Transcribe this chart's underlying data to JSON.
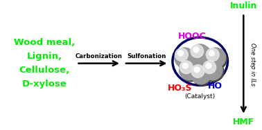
{
  "biomass_text": [
    "Wood meal,",
    "Lignin,",
    "Cellulose,",
    "D-xylose"
  ],
  "biomass_color": "#00ee00",
  "carbonization_label": "Carbonization",
  "sulfonation_label": "Sulfonation",
  "hooc_label": "HOOC",
  "hooc_color": "#dd00dd",
  "ho3s_label": "HO₃S",
  "ho3s_color": "#ff0000",
  "ho_label": "HO",
  "ho_color": "#0000cc",
  "catalyst_label": "(Catalyst)",
  "catalyst_color": "#000000",
  "inulin_label": "Inulin",
  "inulin_color": "#00ee00",
  "hmf_label": "HMF",
  "hmf_color": "#00ee00",
  "vertical_label": "One step in ILs",
  "vertical_color": "#000000",
  "bg_color": "#ffffff",
  "arrow_color": "#000000"
}
